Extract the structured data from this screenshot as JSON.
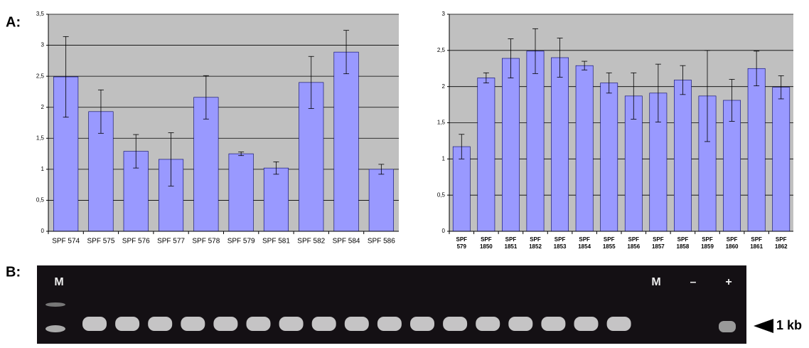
{
  "panel_labels": [
    "A:",
    "B:"
  ],
  "chart_data": [
    {
      "type": "bar",
      "categories": [
        "SPF 574",
        "SPF 575",
        "SPF 576",
        "SPF 577",
        "SPF 578",
        "SPF 579",
        "SPF 581",
        "SPF 582",
        "SPF 584",
        "SPF 586"
      ],
      "values": [
        2.49,
        1.93,
        1.29,
        1.16,
        2.16,
        1.25,
        1.02,
        2.4,
        2.89,
        1.0
      ],
      "errors": [
        0.65,
        0.35,
        0.27,
        0.43,
        0.35,
        0.03,
        0.1,
        0.42,
        0.35,
        0.08
      ],
      "color": "#9999ff",
      "ylim": [
        0,
        3.5
      ],
      "yticks": [
        0,
        {
          "value": 0.5,
          "label": "0,5"
        },
        1,
        {
          "value": 1.5,
          "label": "1,5"
        },
        2,
        {
          "value": 2.5,
          "label": "2,5"
        },
        3,
        {
          "value": 3.5,
          "label": "3,5"
        }
      ],
      "grid": true
    },
    {
      "type": "bar",
      "categories": [
        [
          "SPF",
          "579"
        ],
        [
          "SPF",
          "1850"
        ],
        [
          "SPF",
          "1851"
        ],
        [
          "SPF",
          "1852"
        ],
        [
          "SPF",
          "1853"
        ],
        [
          "SPF",
          "1854"
        ],
        [
          "SPF",
          "1855"
        ],
        [
          "SPF",
          "1856"
        ],
        [
          "SPF",
          "1857"
        ],
        [
          "SPF",
          "1858"
        ],
        [
          "SPF",
          "1859"
        ],
        [
          "SPF",
          "1860"
        ],
        [
          "SPF",
          "1861"
        ],
        [
          "SPF",
          "1862"
        ]
      ],
      "values": [
        1.17,
        2.12,
        2.39,
        2.49,
        2.4,
        2.29,
        2.05,
        1.87,
        1.91,
        2.09,
        1.87,
        1.81,
        2.25,
        1.99
      ],
      "errors": [
        0.17,
        0.07,
        0.27,
        0.31,
        0.27,
        0.06,
        0.14,
        0.32,
        0.4,
        0.2,
        0.63,
        0.29,
        0.24,
        0.16
      ],
      "color": "#9999ff",
      "ylim": [
        0,
        3
      ],
      "yticks": [
        0,
        {
          "value": 0.5,
          "label": "0,5"
        },
        1,
        {
          "value": 1.5,
          "label": "1,5"
        },
        2,
        {
          "value": 2.5,
          "label": "2,5"
        },
        3
      ],
      "grid": true
    }
  ],
  "gel": {
    "lane_labels": [
      "M",
      "M",
      "–",
      "+"
    ],
    "size_marker": "1 kb"
  }
}
